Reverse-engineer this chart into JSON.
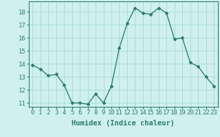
{
  "x": [
    0,
    1,
    2,
    3,
    4,
    5,
    6,
    7,
    8,
    9,
    10,
    11,
    12,
    13,
    14,
    15,
    16,
    17,
    18,
    19,
    20,
    21,
    22,
    23
  ],
  "y": [
    13.9,
    13.6,
    13.1,
    13.2,
    12.4,
    11.0,
    11.0,
    10.9,
    11.7,
    11.0,
    12.3,
    15.2,
    17.1,
    18.3,
    17.9,
    17.8,
    18.3,
    17.9,
    15.9,
    16.0,
    14.1,
    13.8,
    13.0,
    12.3
  ],
  "line_color": "#2e7d6e",
  "marker": "D",
  "marker_size": 2.0,
  "bg_color": "#cff0eb",
  "grid_color": "#aaddd8",
  "xlabel": "Humidex (Indice chaleur)",
  "ylim": [
    10.7,
    18.8
  ],
  "xlim": [
    -0.5,
    23.5
  ],
  "yticks": [
    11,
    12,
    13,
    14,
    15,
    16,
    17,
    18
  ],
  "xticks": [
    0,
    1,
    2,
    3,
    4,
    5,
    6,
    7,
    8,
    9,
    10,
    11,
    12,
    13,
    14,
    15,
    16,
    17,
    18,
    19,
    20,
    21,
    22,
    23
  ],
  "xtick_labels": [
    "0",
    "1",
    "2",
    "3",
    "4",
    "5",
    "6",
    "7",
    "8",
    "9",
    "10",
    "11",
    "12",
    "13",
    "14",
    "15",
    "16",
    "17",
    "18",
    "19",
    "20",
    "21",
    "22",
    "23"
  ],
  "tick_color": "#2e7d6e",
  "label_color": "#2e7d6e",
  "font_size": 6.5,
  "xlabel_fontsize": 7.5,
  "linewidth": 1.0
}
